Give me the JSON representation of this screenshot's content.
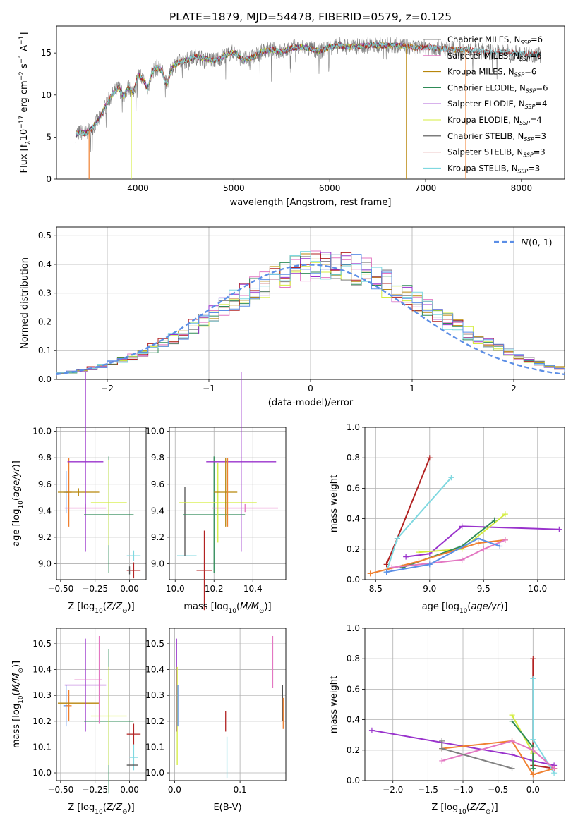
{
  "title": "PLATE=1879, MJD=54478, FIBERID=0579, z=0.125",
  "colors": {
    "Chabrier MILES": "#808080",
    "Salpeter MILES": "#e377c2",
    "Kroupa MILES": "#b8860b",
    "Chabrier ELODIE": "#2e8b57",
    "Salpeter ELODIE": "#9932cc",
    "Kroupa ELODIE": "#d4ed3c",
    "Chabrier STELIB": "#505050",
    "Salpeter STELIB": "#b22222",
    "Kroupa STELIB": "#7fd8e0",
    "extra_blue": "#5b8ee6",
    "extra_orange": "#f08030",
    "gaussian": "#5b8ee6"
  },
  "chart_data": [
    {
      "id": "spectrum",
      "type": "line",
      "xlabel": "wavelength [Angstrom, rest frame]",
      "xlim": [
        3150,
        8450
      ],
      "ylim": [
        0,
        18.2
      ],
      "xticks": [
        "4000",
        "5000",
        "6000",
        "7000",
        "8000"
      ],
      "yticks": [
        "0",
        "5",
        "10",
        "15"
      ],
      "legend_position": "top-right",
      "legend": [
        {
          "name": "Chabrier MILES",
          "sub": "SSP",
          "n": "6"
        },
        {
          "name": "Salpeter MILES",
          "sub": "SSP",
          "n": "6"
        },
        {
          "name": "Kroupa MILES",
          "sub": "SSP",
          "n": "6"
        },
        {
          "name": "Chabrier ELODIE",
          "sub": "SSP",
          "n": "6"
        },
        {
          "name": "Salpeter ELODIE",
          "sub": "SSP",
          "n": "4"
        },
        {
          "name": "Kroupa ELODIE",
          "sub": "SSP",
          "n": "4"
        },
        {
          "name": "Chabrier STELIB",
          "sub": "SSP",
          "n": "3"
        },
        {
          "name": "Salpeter STELIB",
          "sub": "SSP",
          "n": "3"
        },
        {
          "name": "Kroupa STELIB",
          "sub": "SSP",
          "n": "3"
        }
      ],
      "series": [
        {
          "name": "Chabrier MILES",
          "x": [
            3350,
            3400,
            3450,
            3500,
            3550,
            3600,
            3650,
            3700,
            3750,
            3800,
            3850,
            3900,
            3950,
            4000,
            4050,
            4100,
            4150,
            4200,
            4250,
            4300,
            4350,
            4400,
            4500,
            4600,
            4700,
            4800,
            4900,
            5000,
            5100,
            5200,
            5300,
            5400,
            5500,
            5600,
            5700,
            5800,
            5900,
            6000,
            6100,
            6200,
            6300,
            6400,
            6500,
            6600,
            6700,
            6800,
            6900,
            7000,
            7100,
            7200,
            7300,
            7400,
            7500,
            7600,
            7700,
            7800,
            7900,
            8000,
            8100,
            8200
          ],
          "y": [
            5.3,
            5.6,
            5.4,
            5.8,
            6.5,
            7.2,
            8.4,
            9.5,
            10.3,
            10.9,
            9.8,
            11.0,
            10.2,
            12.4,
            11.9,
            10.8,
            12.8,
            13.3,
            12.9,
            11.2,
            13.1,
            13.8,
            14.1,
            14.6,
            14.3,
            14.1,
            14.7,
            15.1,
            14.2,
            14.5,
            15.2,
            15.4,
            15.1,
            15.6,
            15.7,
            15.5,
            15.2,
            15.7,
            15.9,
            15.7,
            15.8,
            15.9,
            15.9,
            15.9,
            15.9,
            15.8,
            15.6,
            15.7,
            15.6,
            15.5,
            15.4,
            15.4,
            15.3,
            15.2,
            15.1,
            15.1,
            15.0,
            14.9,
            14.9,
            14.8
          ]
        }
      ]
    },
    {
      "id": "histogram",
      "type": "bar",
      "xlabel": "(data-model)/error",
      "ylabel": "Normed distribution",
      "xlim": [
        -2.5,
        2.5
      ],
      "ylim": [
        0,
        0.53
      ],
      "xticks": [
        "−2",
        "−1",
        "0",
        "1",
        "2"
      ],
      "yticks": [
        "0.0",
        "0.1",
        "0.2",
        "0.3",
        "0.4",
        "0.5"
      ],
      "grid": true,
      "legend_position": "top-right",
      "legend": [
        {
          "name": "N(0, 1)"
        }
      ],
      "bin_width": 0.1,
      "base_distribution": [
        0.018,
        0.022,
        0.026,
        0.032,
        0.039,
        0.047,
        0.056,
        0.067,
        0.079,
        0.093,
        0.108,
        0.125,
        0.143,
        0.162,
        0.182,
        0.204,
        0.226,
        0.248,
        0.271,
        0.293,
        0.314,
        0.334,
        0.352,
        0.368,
        0.381,
        0.391,
        0.397,
        0.399,
        0.397,
        0.391,
        0.381,
        0.368,
        0.352,
        0.334,
        0.314,
        0.293,
        0.271,
        0.248,
        0.226,
        0.204,
        0.182,
        0.162,
        0.143,
        0.125,
        0.108,
        0.093,
        0.079,
        0.067,
        0.056,
        0.047,
        0.039,
        0.032
      ]
    },
    {
      "id": "age-vs-Z",
      "type": "scatter",
      "xlabel": "Z [log10(Z/Zsun)]",
      "ylabel": "age [log10(age/yr)]",
      "xlim": [
        -0.53,
        0.12
      ],
      "ylim": [
        8.88,
        10.03
      ],
      "xticks": [
        "−0.50",
        "−0.25",
        "0.00"
      ],
      "yticks": [
        "9.0",
        "9.2",
        "9.4",
        "9.6",
        "9.8",
        "10.0"
      ],
      "grid": true,
      "points": [
        {
          "x": -0.46,
          "y": 9.54,
          "xerr": 0.02,
          "yerr": 0.16,
          "c": "extra_blue"
        },
        {
          "x": -0.44,
          "y": 9.54,
          "xerr": 0.02,
          "yerr": 0.26,
          "c": "extra_orange"
        },
        {
          "x": -0.37,
          "y": 9.54,
          "xerr": 0.15,
          "yerr": 0.03,
          "c": "Kroupa MILES"
        },
        {
          "x": -0.32,
          "y": 9.42,
          "xerr": 0.15,
          "yerr": 0.03,
          "c": "Salpeter MILES"
        },
        {
          "x": -0.32,
          "y": 9.77,
          "xerr": 0.13,
          "yerr": 0.68,
          "c": "Salpeter ELODIE"
        },
        {
          "x": -0.15,
          "y": 9.37,
          "xerr": 0.18,
          "yerr": 0.44,
          "c": "Chabrier ELODIE"
        },
        {
          "x": -0.15,
          "y": 9.46,
          "xerr": 0.13,
          "yerr": 0.32,
          "c": "Kroupa ELODIE"
        },
        {
          "x": 0.03,
          "y": 8.95,
          "xerr": 0.05,
          "yerr": 0.06,
          "c": "Salpeter STELIB"
        },
        {
          "x": 0.03,
          "y": 9.06,
          "xerr": 0.05,
          "yerr": 0.04,
          "c": "Kroupa STELIB"
        },
        {
          "x": 0.0,
          "y": 8.95,
          "xerr": 0.0,
          "yerr": 0.03,
          "c": "Chabrier STELIB"
        }
      ]
    },
    {
      "id": "age-vs-mass",
      "type": "scatter",
      "xlabel": "mass [log10(M/Msun)]",
      "xlim": [
        9.97,
        10.57
      ],
      "ylim": [
        8.88,
        10.03
      ],
      "xticks": [
        "10.0",
        "10.2",
        "10.4"
      ],
      "yticks": [
        "9.0",
        "9.2",
        "9.4",
        "9.6",
        "9.8",
        "10.0"
      ],
      "grid": true,
      "points": [
        {
          "x": 10.06,
          "y": 9.06,
          "xerr": 0.05,
          "yerr": 0.0,
          "c": "Kroupa STELIB"
        },
        {
          "x": 10.05,
          "y": 9.32,
          "xerr": 0.0,
          "yerr": 0.26,
          "c": "Chabrier STELIB"
        },
        {
          "x": 10.2,
          "y": 9.37,
          "xerr": 0.16,
          "yerr": 0.44,
          "c": "Chabrier ELODIE"
        },
        {
          "x": 10.22,
          "y": 9.46,
          "xerr": 0.2,
          "yerr": 0.3,
          "c": "Kroupa ELODIE"
        },
        {
          "x": 10.15,
          "y": 8.95,
          "xerr": 0.04,
          "yerr": 0.3,
          "c": "Salpeter STELIB"
        },
        {
          "x": 10.34,
          "y": 9.77,
          "xerr": 0.18,
          "yerr": 0.68,
          "c": "Salpeter ELODIE"
        },
        {
          "x": 10.26,
          "y": 9.54,
          "xerr": 0.06,
          "yerr": 0.26,
          "c": "Kroupa MILES"
        },
        {
          "x": 10.36,
          "y": 9.42,
          "xerr": 0.17,
          "yerr": 0.03,
          "c": "Salpeter MILES"
        },
        {
          "x": 10.27,
          "y": 9.54,
          "xerr": 0.0,
          "yerr": 0.26,
          "c": "extra_orange"
        }
      ]
    },
    {
      "id": "mw-vs-age",
      "type": "line",
      "xlabel": "age [log10(age/yr)]",
      "ylabel": "mass weight",
      "xlim": [
        8.4,
        10.25
      ],
      "ylim": [
        0,
        1.0
      ],
      "xticks": [
        "8.5",
        "9.0",
        "9.5",
        "10.0"
      ],
      "yticks": [
        "0.0",
        "0.2",
        "0.4",
        "0.6",
        "0.8",
        "1.0"
      ],
      "grid": true,
      "series": [
        {
          "name": "Salpeter STELIB",
          "x": [
            8.6,
            8.7,
            9.0
          ],
          "y": [
            0.1,
            0.27,
            0.8
          ]
        },
        {
          "name": "Kroupa STELIB",
          "x": [
            8.6,
            8.7,
            9.2
          ],
          "y": [
            0.05,
            0.27,
            0.67
          ]
        },
        {
          "name": "Salpeter ELODIE",
          "x": [
            8.78,
            9.0,
            9.3,
            10.2
          ],
          "y": [
            0.15,
            0.17,
            0.35,
            0.33
          ]
        },
        {
          "name": "Kroupa ELODIE",
          "x": [
            8.9,
            9.3,
            9.7
          ],
          "y": [
            0.18,
            0.2,
            0.43
          ]
        },
        {
          "name": "Chabrier ELODIE",
          "x": [
            8.75,
            9.3,
            9.6
          ],
          "y": [
            0.08,
            0.22,
            0.39
          ]
        },
        {
          "name": "extra_orange",
          "x": [
            8.45,
            8.9,
            9.45,
            9.7
          ],
          "y": [
            0.04,
            0.12,
            0.24,
            0.26
          ]
        },
        {
          "name": "Salpeter MILES",
          "x": [
            8.65,
            9.3,
            9.5,
            9.7
          ],
          "y": [
            0.08,
            0.13,
            0.2,
            0.26
          ]
        },
        {
          "name": "extra_blue",
          "x": [
            8.6,
            9.0,
            9.45,
            9.65
          ],
          "y": [
            0.05,
            0.1,
            0.27,
            0.22
          ]
        }
      ]
    },
    {
      "id": "mass-vs-Z",
      "type": "scatter",
      "xlabel": "Z [log10(Z/Zsun)]",
      "ylabel": "mass [log10(M/Msun)]",
      "xlim": [
        -0.53,
        0.12
      ],
      "ylim": [
        9.97,
        10.56
      ],
      "xticks": [
        "−0.50",
        "−0.25",
        "0.00"
      ],
      "yticks": [
        "10.0",
        "10.1",
        "10.2",
        "10.3",
        "10.4",
        "10.5"
      ],
      "grid": true,
      "points": [
        {
          "x": -0.46,
          "y": 10.26,
          "xerr": 0.02,
          "yerr": 0.08,
          "c": "extra_blue"
        },
        {
          "x": -0.44,
          "y": 10.26,
          "xerr": 0.02,
          "yerr": 0.06,
          "c": "extra_orange"
        },
        {
          "x": -0.37,
          "y": 10.27,
          "xerr": 0.15,
          "yerr": 0.0,
          "c": "Kroupa MILES"
        },
        {
          "x": -0.32,
          "y": 10.34,
          "xerr": 0.15,
          "yerr": 0.18,
          "c": "Salpeter ELODIE"
        },
        {
          "x": -0.3,
          "y": 10.36,
          "xerr": 0.1,
          "yerr": 0.0,
          "c": "Salpeter MILES"
        },
        {
          "x": -0.15,
          "y": 10.2,
          "xerr": 0.18,
          "yerr": 0.28,
          "c": "Chabrier ELODIE"
        },
        {
          "x": -0.15,
          "y": 10.22,
          "xerr": 0.13,
          "yerr": 0.19,
          "c": "Kroupa ELODIE"
        },
        {
          "x": -0.22,
          "y": 10.36,
          "xerr": 0.0,
          "yerr": 0.17,
          "c": "Salpeter MILES"
        },
        {
          "x": 0.03,
          "y": 10.15,
          "xerr": 0.05,
          "yerr": 0.04,
          "c": "Salpeter STELIB"
        },
        {
          "x": 0.03,
          "y": 10.06,
          "xerr": 0.03,
          "yerr": 0.05,
          "c": "Kroupa STELIB"
        },
        {
          "x": 0.02,
          "y": 10.03,
          "xerr": 0.04,
          "yerr": 0.0,
          "c": "Chabrier STELIB"
        }
      ]
    },
    {
      "id": "mass-vs-EBV",
      "type": "scatter",
      "xlabel": "E(B-V)",
      "xlim": [
        -0.008,
        0.17
      ],
      "ylim": [
        9.97,
        10.56
      ],
      "xticks": [
        "0.0",
        "0.1"
      ],
      "yticks": [
        "10.0",
        "10.1",
        "10.2",
        "10.3",
        "10.4",
        "10.5"
      ],
      "grid": true,
      "points": [
        {
          "x": 0.003,
          "y": 10.34,
          "xerr": 0,
          "yerr": 0.18,
          "c": "Salpeter ELODIE"
        },
        {
          "x": 0.004,
          "y": 10.22,
          "xerr": 0,
          "yerr": 0.19,
          "c": "Kroupa ELODIE"
        },
        {
          "x": 0.005,
          "y": 10.26,
          "xerr": 0,
          "yerr": 0.08,
          "c": "extra_blue"
        },
        {
          "x": 0.078,
          "y": 10.2,
          "xerr": 0,
          "yerr": 0.04,
          "c": "Salpeter STELIB"
        },
        {
          "x": 0.08,
          "y": 10.06,
          "xerr": 0,
          "yerr": 0.08,
          "c": "Kroupa STELIB"
        },
        {
          "x": 0.15,
          "y": 10.43,
          "xerr": 0,
          "yerr": 0.1,
          "c": "Salpeter MILES"
        },
        {
          "x": 0.165,
          "y": 10.27,
          "xerr": 0,
          "yerr": 0.07,
          "c": "Chabrier STELIB"
        },
        {
          "x": 0.166,
          "y": 10.23,
          "xerr": 0,
          "yerr": 0.06,
          "c": "extra_orange"
        }
      ]
    },
    {
      "id": "mw-vs-Z",
      "type": "line",
      "xlabel": "Z [log10(Z/Zsun)]",
      "ylabel": "mass weight",
      "xlim": [
        -2.4,
        0.45
      ],
      "ylim": [
        0,
        1.0
      ],
      "xticks": [
        "−2.0",
        "−1.5",
        "−1.0",
        "−0.5",
        "0.0"
      ],
      "yticks": [
        "0.0",
        "0.2",
        "0.4",
        "0.6",
        "0.8",
        "1.0"
      ],
      "grid": true,
      "series": [
        {
          "name": "Salpeter ELODIE",
          "x": [
            -2.3,
            -0.3,
            0.0,
            0.3
          ],
          "y": [
            0.33,
            0.17,
            0.13,
            0.1
          ]
        },
        {
          "name": "Salpeter STELIB",
          "x": [
            0.0,
            0.0,
            0.3
          ],
          "y": [
            0.8,
            0.1,
            0.08
          ]
        },
        {
          "name": "Kroupa STELIB",
          "x": [
            0.0,
            0.0,
            0.3
          ],
          "y": [
            0.67,
            0.27,
            0.05
          ]
        },
        {
          "name": "Kroupa ELODIE",
          "x": [
            -0.3,
            0.0,
            0.0
          ],
          "y": [
            0.43,
            0.18,
            0.2
          ]
        },
        {
          "name": "Chabrier ELODIE",
          "x": [
            -0.3,
            0.0,
            0.0
          ],
          "y": [
            0.39,
            0.22,
            0.08
          ]
        },
        {
          "name": "extra_orange",
          "x": [
            -1.3,
            -0.3,
            0.0,
            0.3
          ],
          "y": [
            0.21,
            0.26,
            0.04,
            0.08
          ]
        },
        {
          "name": "Salpeter MILES",
          "x": [
            -1.3,
            -0.3,
            0.0,
            0.3
          ],
          "y": [
            0.13,
            0.26,
            0.2,
            0.08
          ]
        },
        {
          "name": "Chabrier MILES",
          "x": [
            -1.3,
            -1.3,
            -0.3
          ],
          "y": [
            0.26,
            0.21,
            0.08
          ]
        }
      ]
    }
  ]
}
